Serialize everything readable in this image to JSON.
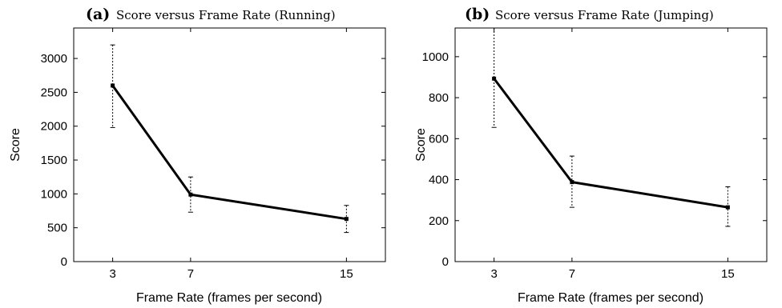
{
  "chart_data": [
    {
      "type": "line",
      "panel_label": "(a)",
      "title": "Score versus Frame Rate (Running)",
      "xlabel": "Frame Rate (frames per second)",
      "ylabel": "Score",
      "x_ticks": [
        3,
        7,
        15
      ],
      "y_ticks": [
        0,
        500,
        1000,
        1500,
        2000,
        2500,
        3000
      ],
      "xlim": [
        1,
        17
      ],
      "ylim": [
        0,
        3450
      ],
      "grid": false,
      "series": [
        {
          "x": [
            3,
            7,
            15
          ],
          "y": [
            2600,
            990,
            630
          ],
          "err_low": [
            1980,
            730,
            430
          ],
          "err_high": [
            3200,
            1250,
            830
          ]
        }
      ]
    },
    {
      "type": "line",
      "panel_label": "(b)",
      "title": "Score versus Frame Rate (Jumping)",
      "xlabel": "Frame Rate (frames per second)",
      "ylabel": "Score",
      "x_ticks": [
        3,
        7,
        15
      ],
      "y_ticks": [
        0,
        200,
        400,
        600,
        800,
        1000
      ],
      "xlim": [
        1,
        17
      ],
      "ylim": [
        0,
        1140
      ],
      "grid": false,
      "series": [
        {
          "x": [
            3,
            7,
            15
          ],
          "y": [
            893,
            388,
            265
          ],
          "err_low": [
            655,
            265,
            172
          ],
          "err_high": [
            1140,
            515,
            365
          ]
        }
      ]
    }
  ]
}
